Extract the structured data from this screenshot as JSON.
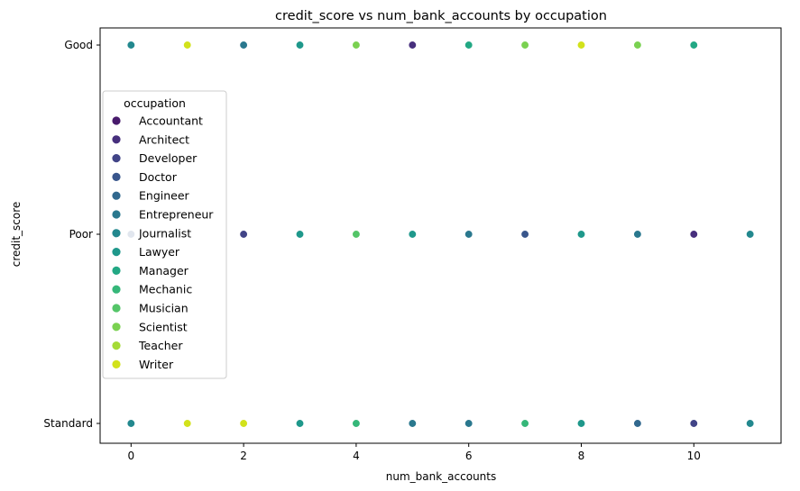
{
  "chart_data": {
    "type": "scatter",
    "title": "credit_score vs num_bank_accounts by occupation",
    "xlabel": "num_bank_accounts",
    "ylabel": "credit_score",
    "xlim": [
      -0.55,
      11.55
    ],
    "x_ticks": [
      0,
      2,
      4,
      6,
      8,
      10
    ],
    "y_categories": [
      "Good",
      "Poor",
      "Standard"
    ],
    "grid": false,
    "legend": {
      "title": "occupation",
      "placement": "center-left",
      "entries": [
        {
          "name": "Accountant",
          "color": "#481a6c"
        },
        {
          "name": "Architect",
          "color": "#472f7d"
        },
        {
          "name": "Developer",
          "color": "#414487"
        },
        {
          "name": "Doctor",
          "color": "#39568c"
        },
        {
          "name": "Engineer",
          "color": "#31688e"
        },
        {
          "name": "Entrepreneur",
          "color": "#2a788e"
        },
        {
          "name": "Journalist",
          "color": "#23888e"
        },
        {
          "name": "Lawyer",
          "color": "#1f988b"
        },
        {
          "name": "Manager",
          "color": "#22a884"
        },
        {
          "name": "Mechanic",
          "color": "#35b779"
        },
        {
          "name": "Musician",
          "color": "#54c568"
        },
        {
          "name": "Scientist",
          "color": "#7ad151"
        },
        {
          "name": "Teacher",
          "color": "#a5db36"
        },
        {
          "name": "Writer",
          "color": "#d2e21b"
        }
      ]
    },
    "points": [
      {
        "x": 0,
        "y": "Good",
        "occupation": "Journalist"
      },
      {
        "x": 1,
        "y": "Good",
        "occupation": "Writer"
      },
      {
        "x": 2,
        "y": "Good",
        "occupation": "Entrepreneur"
      },
      {
        "x": 3,
        "y": "Good",
        "occupation": "Lawyer"
      },
      {
        "x": 4,
        "y": "Good",
        "occupation": "Scientist"
      },
      {
        "x": 5,
        "y": "Good",
        "occupation": "Architect"
      },
      {
        "x": 6,
        "y": "Good",
        "occupation": "Manager"
      },
      {
        "x": 7,
        "y": "Good",
        "occupation": "Scientist"
      },
      {
        "x": 8,
        "y": "Good",
        "occupation": "Writer"
      },
      {
        "x": 9,
        "y": "Good",
        "occupation": "Scientist"
      },
      {
        "x": 10,
        "y": "Good",
        "occupation": "Manager"
      },
      {
        "x": 0,
        "y": "Poor",
        "occupation": "Doctor"
      },
      {
        "x": 2,
        "y": "Poor",
        "occupation": "Developer"
      },
      {
        "x": 3,
        "y": "Poor",
        "occupation": "Lawyer"
      },
      {
        "x": 4,
        "y": "Poor",
        "occupation": "Musician"
      },
      {
        "x": 5,
        "y": "Poor",
        "occupation": "Lawyer"
      },
      {
        "x": 6,
        "y": "Poor",
        "occupation": "Entrepreneur"
      },
      {
        "x": 7,
        "y": "Poor",
        "occupation": "Doctor"
      },
      {
        "x": 8,
        "y": "Poor",
        "occupation": "Lawyer"
      },
      {
        "x": 9,
        "y": "Poor",
        "occupation": "Entrepreneur"
      },
      {
        "x": 10,
        "y": "Poor",
        "occupation": "Architect"
      },
      {
        "x": 11,
        "y": "Poor",
        "occupation": "Journalist"
      },
      {
        "x": 0,
        "y": "Standard",
        "occupation": "Journalist"
      },
      {
        "x": 1,
        "y": "Standard",
        "occupation": "Writer"
      },
      {
        "x": 2,
        "y": "Standard",
        "occupation": "Writer"
      },
      {
        "x": 3,
        "y": "Standard",
        "occupation": "Lawyer"
      },
      {
        "x": 4,
        "y": "Standard",
        "occupation": "Mechanic"
      },
      {
        "x": 5,
        "y": "Standard",
        "occupation": "Entrepreneur"
      },
      {
        "x": 6,
        "y": "Standard",
        "occupation": "Entrepreneur"
      },
      {
        "x": 7,
        "y": "Standard",
        "occupation": "Mechanic"
      },
      {
        "x": 8,
        "y": "Standard",
        "occupation": "Lawyer"
      },
      {
        "x": 9,
        "y": "Standard",
        "occupation": "Engineer"
      },
      {
        "x": 10,
        "y": "Standard",
        "occupation": "Developer"
      },
      {
        "x": 11,
        "y": "Standard",
        "occupation": "Journalist"
      }
    ]
  }
}
